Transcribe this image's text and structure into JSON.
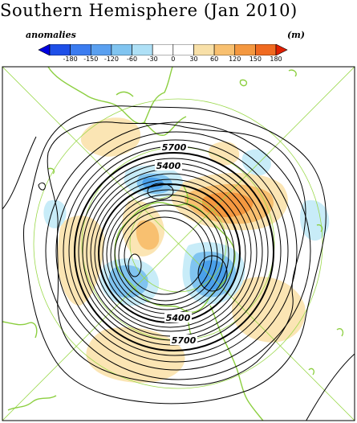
{
  "title": "Southern Hemisphere (Jan 2010)",
  "colorbar": {
    "left_label": "anomalies",
    "units_label": "(m)",
    "ticks": [
      "-180",
      "-150",
      "-120",
      "-60",
      "-30",
      "0",
      "30",
      "60",
      "120",
      "150",
      "180"
    ],
    "colors": [
      "#0000e0",
      "#1e4fe8",
      "#3b7cf0",
      "#5aa0f0",
      "#80c4f0",
      "#aee0f6",
      "#ffffff",
      "#ffffff",
      "#f8e0a8",
      "#f8c070",
      "#f49840",
      "#f06a20",
      "#e02000"
    ]
  },
  "map": {
    "contour_labels": [
      "5700",
      "5400",
      "5400",
      "5700"
    ],
    "colors": {
      "coastline": "#8ccf40",
      "graticule": "#9ad84a",
      "contour": "#000000",
      "warm_light": "#fbe5b4",
      "warm_mid": "#f8c070",
      "warm_strong": "#f49840",
      "cool_light": "#c8ecf8",
      "cool_mid": "#80c4f0",
      "cool_strong": "#4aa0ea"
    }
  }
}
